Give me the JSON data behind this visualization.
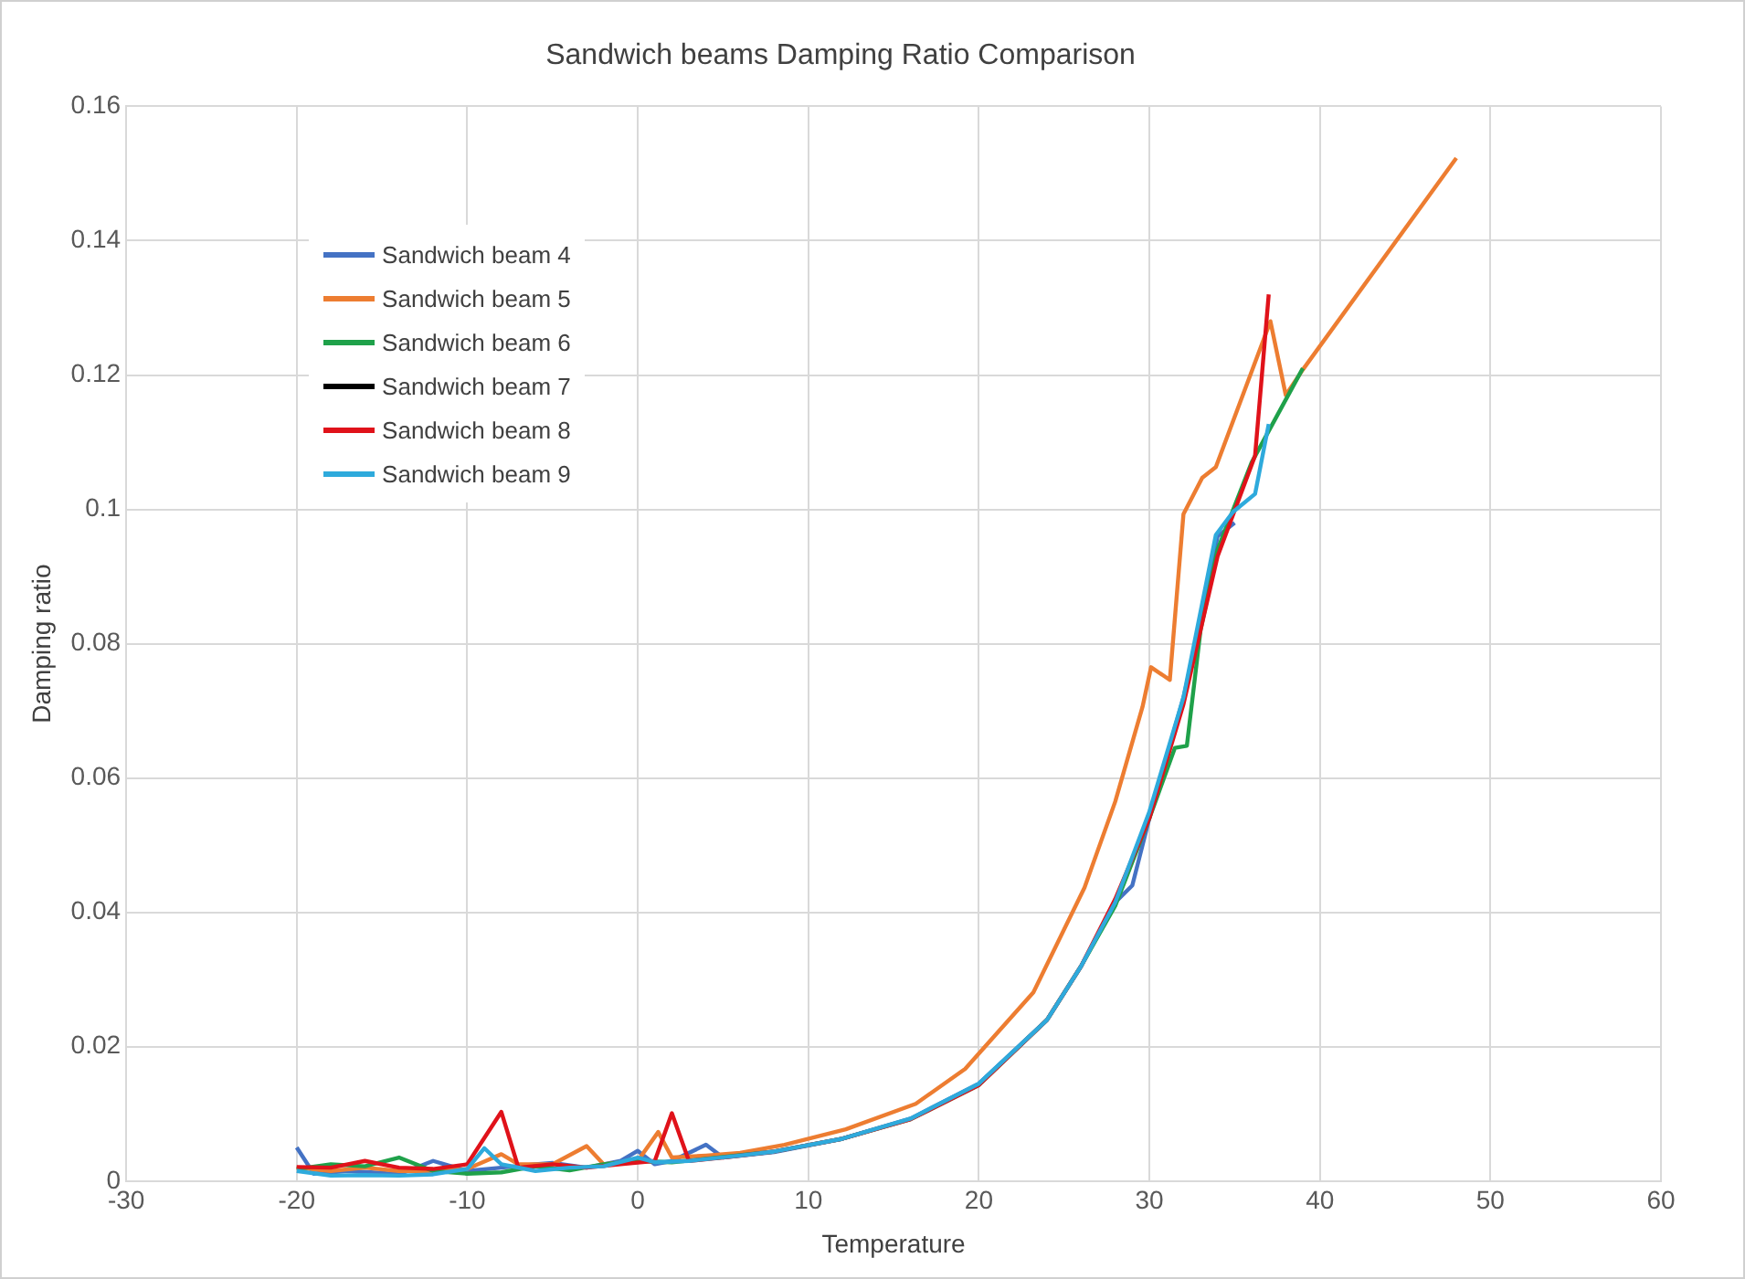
{
  "chart_data": {
    "type": "line",
    "title": "Sandwich beams Damping Ratio Comparison",
    "xlabel": "Temperature",
    "ylabel": "Damping ratio",
    "xlim": [
      -30,
      60
    ],
    "xticks": [
      -30,
      -20,
      -10,
      0,
      10,
      20,
      30,
      40,
      50,
      60
    ],
    "ylim": [
      0,
      0.16
    ],
    "yticks": [
      0,
      0.02,
      0.04,
      0.06,
      0.08,
      0.1,
      0.12,
      0.14,
      0.16
    ],
    "grid": true,
    "legend": "top left",
    "marker": "none",
    "series": [
      {
        "name": "Sandwich beam 4",
        "color": "#4472c4",
        "x": [
          -20,
          -19,
          -17,
          -15,
          -14,
          -12,
          -10,
          -8,
          -6,
          -5,
          -3,
          -1,
          0,
          1,
          2,
          4,
          5,
          8,
          12,
          16,
          20,
          24,
          26,
          28,
          29,
          30,
          31,
          32,
          33,
          34,
          35
        ],
        "values": [
          0.005,
          0.0011,
          0.0015,
          0.0012,
          0.001,
          0.003,
          0.0015,
          0.002,
          0.0025,
          0.0027,
          0.002,
          0.003,
          0.0045,
          0.0025,
          0.003,
          0.0054,
          0.0035,
          0.0043,
          0.0063,
          0.0093,
          0.0145,
          0.024,
          0.032,
          0.0415,
          0.044,
          0.054,
          0.063,
          0.072,
          0.083,
          0.096,
          0.098
        ]
      },
      {
        "name": "Sandwich beam 5",
        "color": "#ed7d31",
        "x": [
          -20,
          -18,
          -16,
          -14,
          -12,
          -10,
          -8,
          -7,
          -5,
          -3,
          -2,
          0,
          1.2,
          2,
          4,
          6,
          8.6,
          12.2,
          16.3,
          19.2,
          23.2,
          26.2,
          28,
          29.6,
          30.1,
          31.2,
          32,
          33.1,
          33.9,
          37.1,
          38,
          39,
          48
        ],
        "values": [
          0.002,
          0.0015,
          0.002,
          0.0015,
          0.0015,
          0.0018,
          0.004,
          0.0025,
          0.0025,
          0.0052,
          0.0025,
          0.003,
          0.0073,
          0.0035,
          0.0038,
          0.0042,
          0.0054,
          0.0077,
          0.0115,
          0.0167,
          0.0281,
          0.0437,
          0.0565,
          0.0706,
          0.0765,
          0.0746,
          0.0993,
          0.1047,
          0.1063,
          0.128,
          0.117,
          0.1208,
          0.1523
        ]
      },
      {
        "name": "Sandwich beam 6",
        "color": "#1fa14a",
        "x": [
          -20,
          -18,
          -16,
          -14,
          -12,
          -10,
          -8,
          -6,
          -4,
          -2,
          0,
          2,
          4,
          8,
          12,
          16,
          20,
          24,
          26,
          28,
          30,
          31.5,
          32.2,
          33,
          34,
          36,
          39
        ],
        "values": [
          0.0018,
          0.0025,
          0.0022,
          0.0035,
          0.0015,
          0.0011,
          0.0013,
          0.0022,
          0.0016,
          0.0025,
          0.003,
          0.0028,
          0.0033,
          0.0044,
          0.0063,
          0.0092,
          0.0143,
          0.024,
          0.032,
          0.041,
          0.054,
          0.0645,
          0.0648,
          0.082,
          0.094,
          0.107,
          0.121
        ]
      },
      {
        "name": "Sandwich beam 7",
        "color": "#000000"
      },
      {
        "name": "Sandwich beam 8",
        "color": "#e0121a",
        "x": [
          -20,
          -18,
          -16,
          -14,
          -12,
          -10,
          -8,
          -7,
          -5,
          -3,
          -1,
          1,
          2,
          3,
          5,
          8,
          12,
          16,
          20,
          24,
          26,
          28,
          30,
          32,
          34,
          36.2,
          37
        ],
        "values": [
          0.0021,
          0.002,
          0.003,
          0.002,
          0.0018,
          0.0025,
          0.0103,
          0.002,
          0.0025,
          0.002,
          0.0025,
          0.003,
          0.0101,
          0.003,
          0.0035,
          0.0044,
          0.0063,
          0.0092,
          0.0143,
          0.024,
          0.032,
          0.042,
          0.054,
          0.071,
          0.093,
          0.108,
          0.132
        ]
      },
      {
        "name": "Sandwich beam 9",
        "color": "#2eaadc",
        "x": [
          -20,
          -18,
          -16,
          -14,
          -12,
          -10,
          -9,
          -8,
          -6,
          -4,
          -2,
          0,
          1,
          3,
          6,
          8,
          12,
          16,
          20,
          24,
          26,
          28,
          30,
          32,
          33.9,
          34.9,
          36.2,
          37
        ],
        "values": [
          0.0015,
          0.0008,
          0.0009,
          0.0008,
          0.001,
          0.0018,
          0.0049,
          0.0025,
          0.0015,
          0.002,
          0.0022,
          0.0035,
          0.0028,
          0.003,
          0.0038,
          0.0044,
          0.0063,
          0.0093,
          0.0145,
          0.024,
          0.032,
          0.0415,
          0.055,
          0.072,
          0.0962,
          0.0996,
          0.1023,
          0.1127
        ]
      }
    ]
  }
}
